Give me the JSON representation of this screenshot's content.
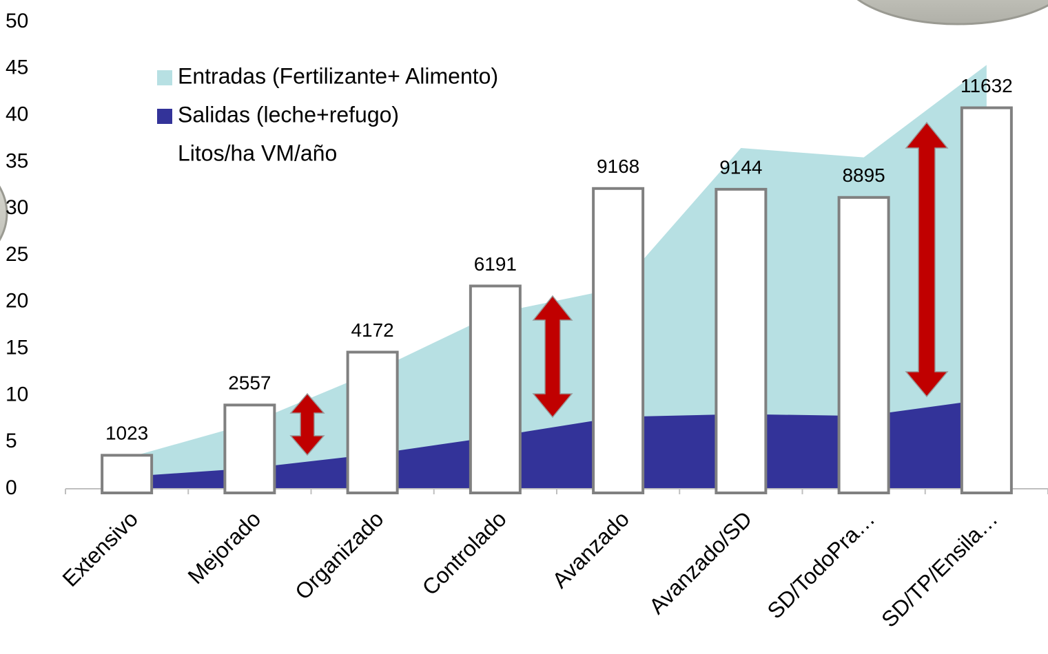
{
  "chart_data": {
    "type": "area",
    "categories": [
      "Extensivo",
      "Mejorado",
      "Organizado",
      "Controlado",
      "Avanzado",
      "Avanzado/SD",
      "SD/TodoPra…",
      "SD/TP/Ensila…"
    ],
    "series": [
      {
        "name": "Entradas (Fertilizante+ Alimento)",
        "color": "#b7e0e3",
        "values": [
          3.3,
          7,
          12.5,
          18.8,
          21.5,
          36.5,
          35.5,
          45.4
        ]
      },
      {
        "name": "Salidas (leche+refugo)",
        "color": "#333399",
        "values": [
          1.3,
          2.2,
          3.7,
          5.6,
          7.7,
          8,
          7.8,
          9.6
        ]
      },
      {
        "name": "Litos/ha VM/año",
        "type": "bar",
        "axis": "y2",
        "color": "#ffffff",
        "values": [
          1023,
          2557,
          4172,
          6191,
          9168,
          9144,
          8895,
          11632
        ]
      }
    ],
    "ylim": [
      0,
      50
    ],
    "yticks": [
      0,
      5,
      10,
      15,
      20,
      25,
      30,
      35,
      40,
      45,
      50
    ],
    "y2lim": [
      0,
      14250
    ],
    "legend": "upper left"
  }
}
